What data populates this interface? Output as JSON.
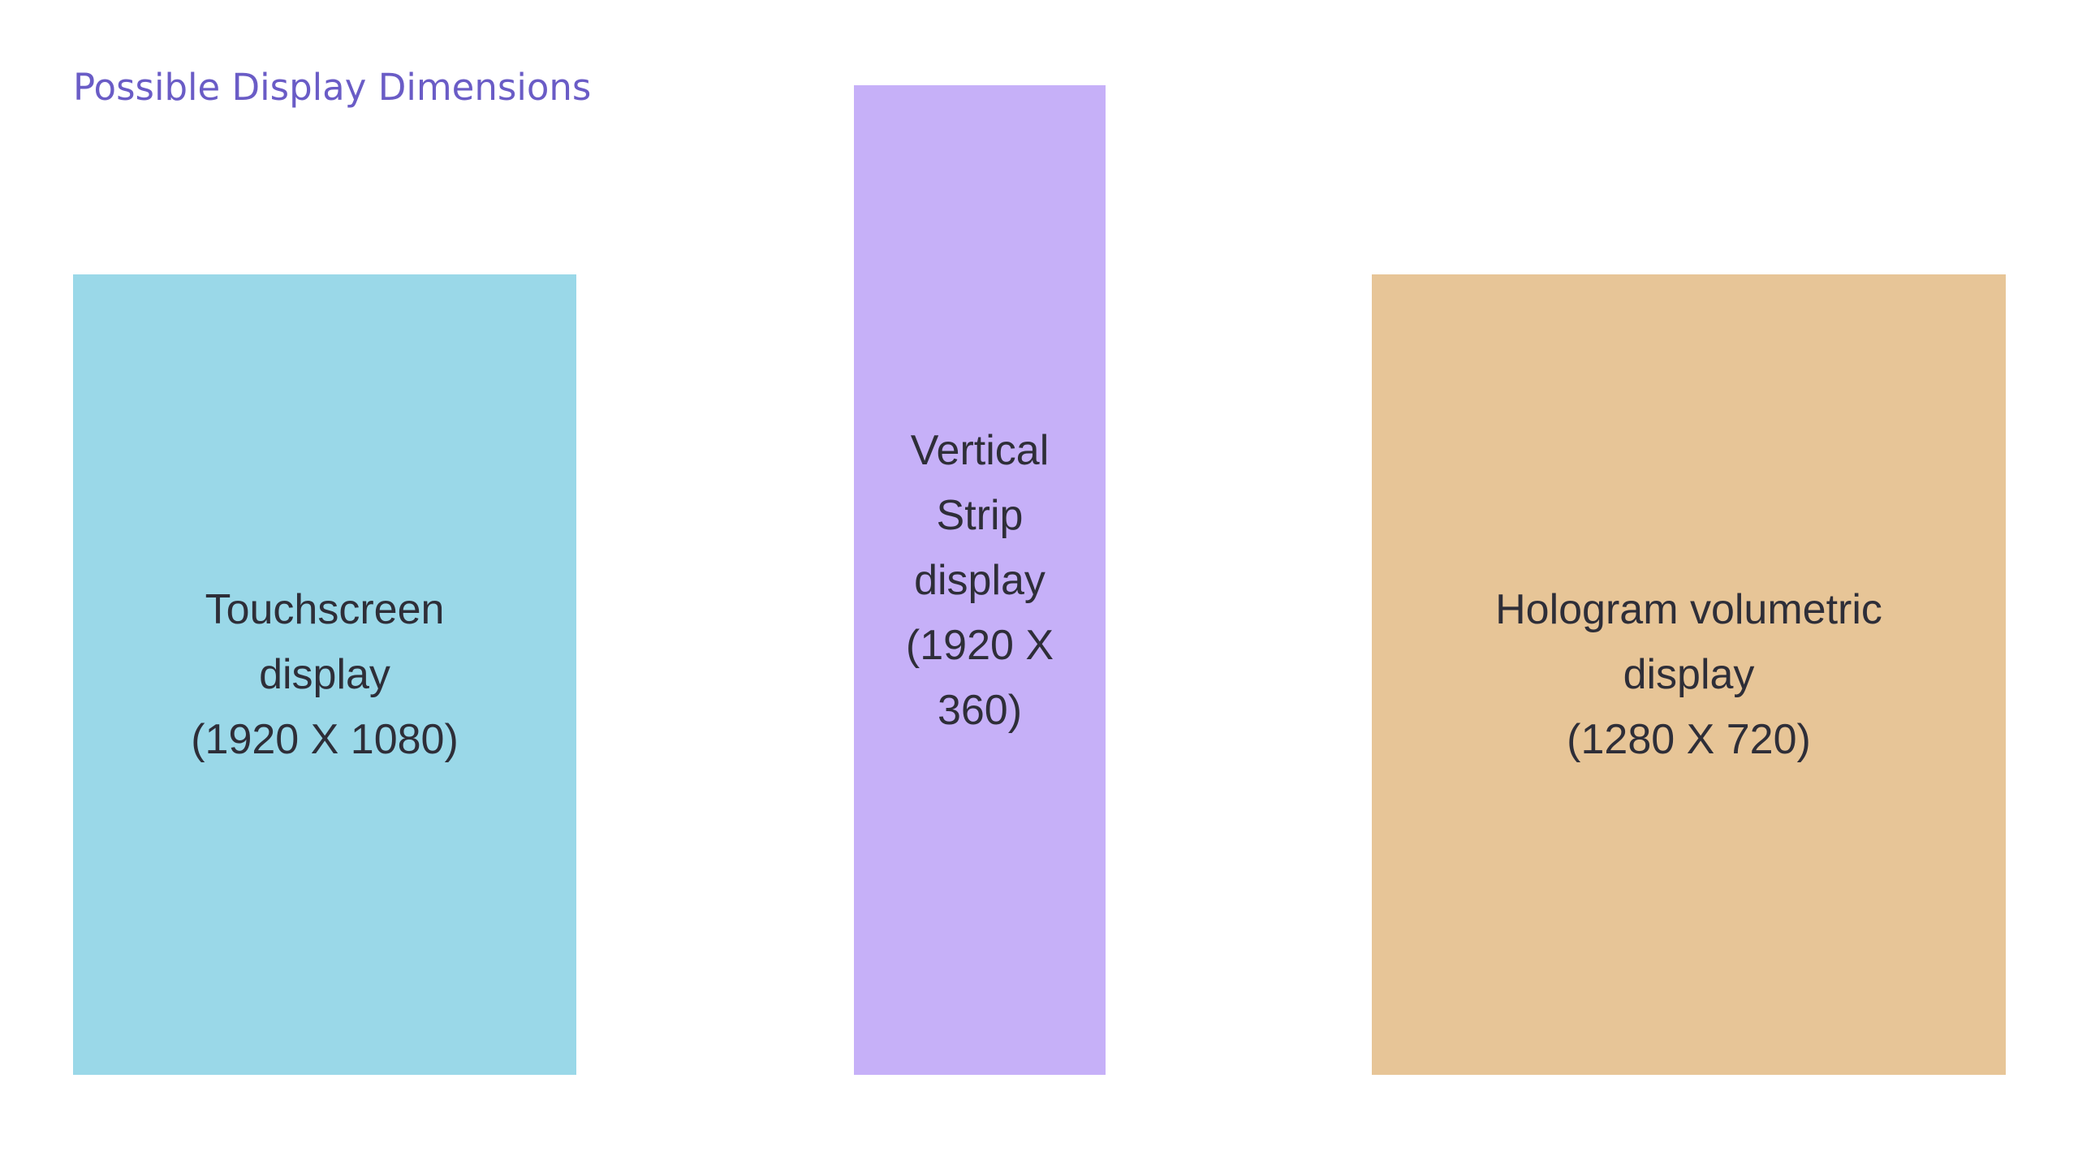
{
  "header": {
    "title": "Possible Display Dimensions"
  },
  "nodes": [
    {
      "lines": [
        "Touchscreen",
        "display",
        "(1920 X 1080)"
      ]
    },
    {
      "lines": [
        "Vertical",
        "Strip",
        "display",
        "(1920 X",
        "360)"
      ]
    },
    {
      "lines": [
        "Hologram volumetric",
        "display",
        "(1280 X 720)"
      ]
    }
  ]
}
